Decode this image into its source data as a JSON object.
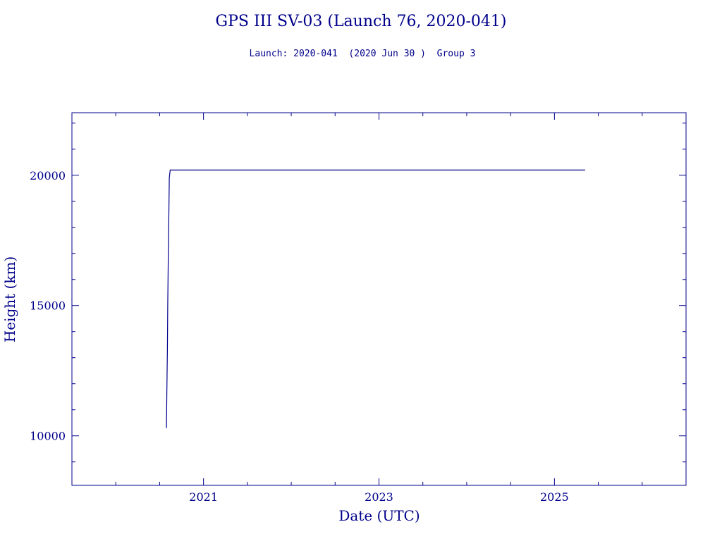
{
  "colors": {
    "ink": "#00008b",
    "background": "#ffffff"
  },
  "chart_data": {
    "type": "line",
    "title": "GPS III SV-03 (Launch 76, 2020-041)",
    "subtitle": "Launch: 2020-041  (2020 Jun 30 )  Group 3",
    "xlabel": "Date (UTC)",
    "ylabel": "Height (km)",
    "xlim": [
      2019.5,
      2026.5
    ],
    "ylim": [
      8100,
      22400
    ],
    "x_ticks": [
      2021,
      2023,
      2025
    ],
    "x_tick_labels": [
      "2021",
      "2023",
      "2025"
    ],
    "y_ticks": [
      10000,
      15000,
      20000
    ],
    "y_tick_labels": [
      "10000",
      "15000",
      "20000"
    ],
    "grid": false,
    "series": [
      {
        "x": [
          2020.578,
          2020.582,
          2020.588,
          2020.592,
          2020.598,
          2020.604,
          2020.61,
          2020.62,
          2020.65,
          2025.35
        ],
        "y": [
          10300,
          11600,
          13300,
          15000,
          16700,
          18300,
          19900,
          20200,
          20200,
          20200
        ]
      }
    ]
  }
}
